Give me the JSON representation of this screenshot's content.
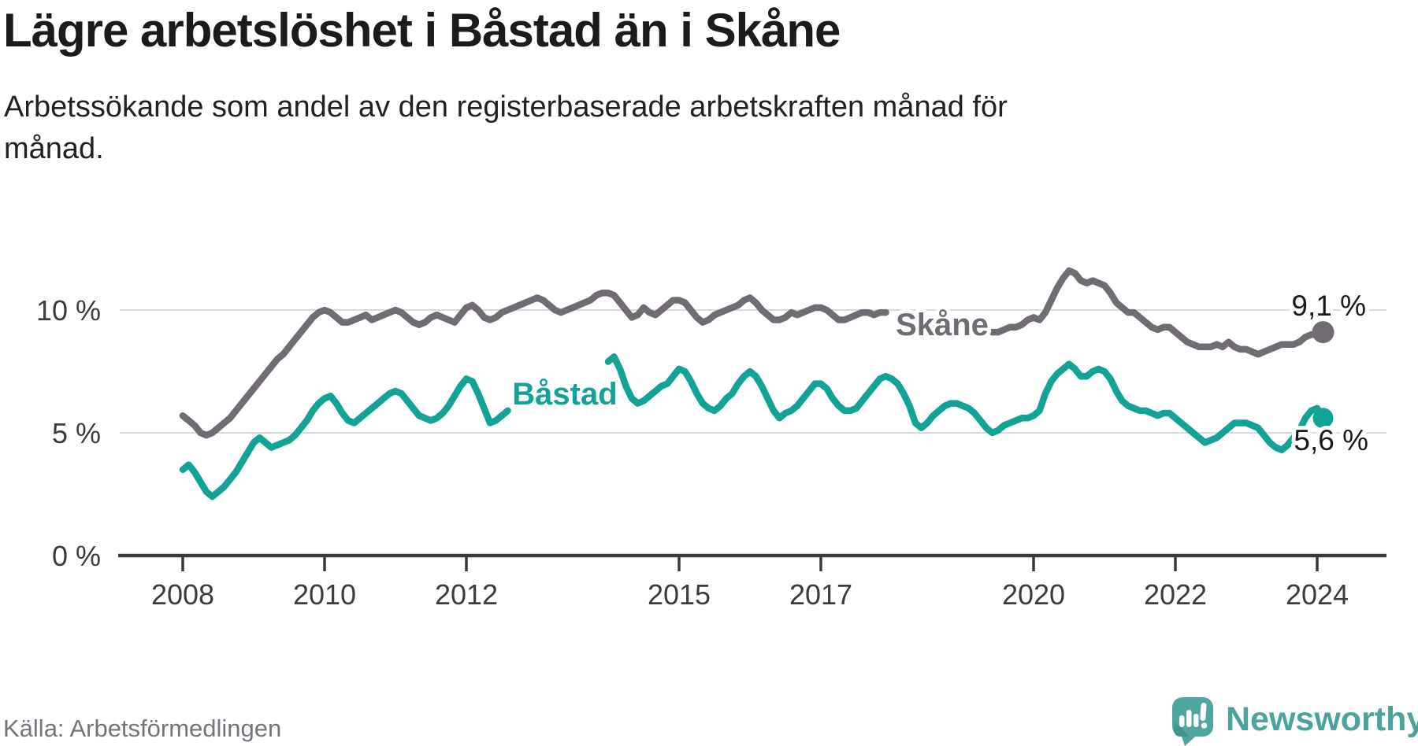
{
  "title": "Lägre arbetslöshet i Båstad än i Skåne",
  "subtitle_lines": [
    "Arbetssökande som andel av den registerbaserade arbetskraften månad för",
    "månad."
  ],
  "source": "Källa: Arbetsförmedlingen",
  "branding": {
    "name": "Newsworthy",
    "logo_icon": "speech-bubble-bar-chart-icon",
    "text_color": "#4ba39d",
    "bubble_color": "#4fa5a0",
    "bubble_shadow_color": "#3f918b"
  },
  "colors": {
    "bastad": "#12a296",
    "skane": "#716c74",
    "grid": "#d9d9d9",
    "axis": "#3a3a3a",
    "tick_text": "#3c3c3c",
    "value_text": "#1a1a1a",
    "title_text": "#1b1b1b",
    "muted_text": "#74747c"
  },
  "chart_data": {
    "type": "line",
    "title": "Lägre arbetslöshet i Båstad än i Skåne",
    "subtitle": "Arbetssökande som andel av den registerbaserade arbetskraften månad för månad.",
    "x_unit": "month",
    "x_start": "2008-01",
    "x_end": "2024-02",
    "ylim": [
      0,
      12.5
    ],
    "grid": "horizontal",
    "legend": "inline-labels",
    "y_ticks": [
      {
        "value": 0,
        "label": "0 %"
      },
      {
        "value": 5,
        "label": "5 %"
      },
      {
        "value": 10,
        "label": "10 %"
      }
    ],
    "x_ticks": [
      {
        "year": 2008,
        "label": "2008"
      },
      {
        "year": 2010,
        "label": "2010"
      },
      {
        "year": 2012,
        "label": "2012"
      },
      {
        "year": 2015,
        "label": "2015"
      },
      {
        "year": 2017,
        "label": "2017"
      },
      {
        "year": 2020,
        "label": "2020"
      },
      {
        "year": 2022,
        "label": "2022"
      },
      {
        "year": 2024,
        "label": "2024"
      }
    ],
    "note": "null values = segment hidden behind inline series label in original graphic",
    "series": [
      {
        "name": "Skåne",
        "color": "#716c74",
        "end_label": "9,1 %",
        "end_value": 9.1,
        "values": [
          5.7,
          5.5,
          5.3,
          5.0,
          4.9,
          5.0,
          5.2,
          5.4,
          5.6,
          5.9,
          6.2,
          6.5,
          6.8,
          7.1,
          7.4,
          7.7,
          8.0,
          8.2,
          8.5,
          8.8,
          9.1,
          9.4,
          9.7,
          9.9,
          10.0,
          9.9,
          9.7,
          9.5,
          9.5,
          9.6,
          9.7,
          9.8,
          9.6,
          9.7,
          9.8,
          9.9,
          10.0,
          9.9,
          9.7,
          9.5,
          9.4,
          9.5,
          9.7,
          9.8,
          9.7,
          9.6,
          9.5,
          9.8,
          10.1,
          10.2,
          10.0,
          9.7,
          9.6,
          9.7,
          9.9,
          10.0,
          10.1,
          10.2,
          10.3,
          10.4,
          10.5,
          10.4,
          10.2,
          10.0,
          9.9,
          10.0,
          10.1,
          10.2,
          10.3,
          10.4,
          10.6,
          10.7,
          10.7,
          10.6,
          10.3,
          10.0,
          9.7,
          9.8,
          10.1,
          9.9,
          9.8,
          10.0,
          10.2,
          10.4,
          10.4,
          10.3,
          10.0,
          9.7,
          9.5,
          9.6,
          9.8,
          9.9,
          10.0,
          10.1,
          10.2,
          10.4,
          10.5,
          10.3,
          10.0,
          9.8,
          9.6,
          9.6,
          9.7,
          9.9,
          9.8,
          9.9,
          10.0,
          10.1,
          10.1,
          10.0,
          9.8,
          9.6,
          9.6,
          9.7,
          9.8,
          9.9,
          9.9,
          9.8,
          9.9,
          9.9,
          null,
          null,
          null,
          null,
          null,
          null,
          null,
          null,
          null,
          null,
          null,
          null,
          null,
          null,
          null,
          null,
          null,
          9.1,
          9.1,
          9.2,
          9.3,
          9.3,
          9.4,
          9.6,
          9.7,
          9.6,
          9.9,
          10.4,
          10.9,
          11.3,
          11.6,
          11.5,
          11.2,
          11.1,
          11.2,
          11.1,
          11.0,
          10.7,
          10.3,
          10.1,
          9.9,
          9.9,
          9.7,
          9.5,
          9.3,
          9.2,
          9.3,
          9.3,
          9.1,
          8.9,
          8.7,
          8.6,
          8.5,
          8.5,
          8.5,
          8.6,
          8.5,
          8.7,
          8.5,
          8.4,
          8.4,
          8.3,
          8.2,
          8.3,
          8.4,
          8.5,
          8.6,
          8.6,
          8.6,
          8.7,
          8.9,
          9.0,
          9.0,
          9.1
        ]
      },
      {
        "name": "Båstad",
        "color": "#12a296",
        "end_label": "5,6 %",
        "end_value": 5.6,
        "values": [
          3.5,
          3.7,
          3.4,
          3.0,
          2.6,
          2.4,
          2.6,
          2.8,
          3.1,
          3.4,
          3.8,
          4.2,
          4.6,
          4.8,
          4.6,
          4.4,
          4.5,
          4.6,
          4.7,
          4.9,
          5.2,
          5.5,
          5.9,
          6.2,
          6.4,
          6.5,
          6.2,
          5.8,
          5.5,
          5.4,
          5.6,
          5.8,
          6.0,
          6.2,
          6.4,
          6.6,
          6.7,
          6.6,
          6.3,
          6.0,
          5.7,
          5.6,
          5.5,
          5.6,
          5.8,
          6.1,
          6.5,
          6.9,
          7.2,
          7.1,
          6.6,
          6.0,
          5.4,
          5.5,
          5.7,
          5.9,
          null,
          null,
          null,
          null,
          null,
          null,
          null,
          null,
          null,
          null,
          null,
          null,
          null,
          null,
          null,
          null,
          7.9,
          8.1,
          7.6,
          6.9,
          6.4,
          6.2,
          6.3,
          6.5,
          6.7,
          6.9,
          7.0,
          7.3,
          7.6,
          7.5,
          7.1,
          6.6,
          6.2,
          6.0,
          5.9,
          6.1,
          6.4,
          6.6,
          7.0,
          7.3,
          7.5,
          7.3,
          6.9,
          6.4,
          5.9,
          5.6,
          5.8,
          5.9,
          6.1,
          6.4,
          6.7,
          7.0,
          7.0,
          6.8,
          6.4,
          6.1,
          5.9,
          5.9,
          6.0,
          6.3,
          6.6,
          6.9,
          7.2,
          7.3,
          7.2,
          7.0,
          6.6,
          6.1,
          5.4,
          5.2,
          5.4,
          5.7,
          5.9,
          6.1,
          6.2,
          6.2,
          6.1,
          6.0,
          5.8,
          5.5,
          5.2,
          5.0,
          5.1,
          5.3,
          5.4,
          5.5,
          5.6,
          5.6,
          5.7,
          5.9,
          6.6,
          7.1,
          7.4,
          7.6,
          7.8,
          7.6,
          7.3,
          7.3,
          7.5,
          7.6,
          7.5,
          7.2,
          6.7,
          6.3,
          6.1,
          6.0,
          5.9,
          5.9,
          5.8,
          5.7,
          5.8,
          5.8,
          5.6,
          5.4,
          5.2,
          5.0,
          4.8,
          4.6,
          4.7,
          4.8,
          5.0,
          5.2,
          5.4,
          5.4,
          5.4,
          5.3,
          5.2,
          4.9,
          4.6,
          4.4,
          4.3,
          4.5,
          4.8,
          5.1,
          5.6,
          5.9,
          6.0,
          5.6
        ]
      }
    ]
  }
}
